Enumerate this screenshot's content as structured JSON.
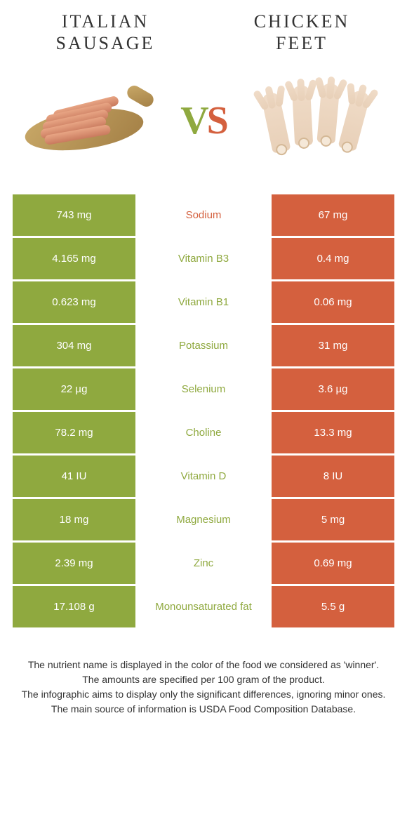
{
  "header": {
    "left_title": "ITALIAN\nSAUSAGE",
    "right_title": "CHICKEN\nFEET",
    "vs_v": "V",
    "vs_s": "S"
  },
  "colors": {
    "left": "#8fa93f",
    "right": "#d4603e",
    "background": "#ffffff"
  },
  "rows": [
    {
      "left": "743 mg",
      "label": "Sodium",
      "right": "67 mg",
      "winner": "orange"
    },
    {
      "left": "4.165 mg",
      "label": "Vitamin B3",
      "right": "0.4 mg",
      "winner": "green"
    },
    {
      "left": "0.623 mg",
      "label": "Vitamin B1",
      "right": "0.06 mg",
      "winner": "green"
    },
    {
      "left": "304 mg",
      "label": "Potassium",
      "right": "31 mg",
      "winner": "green"
    },
    {
      "left": "22 µg",
      "label": "Selenium",
      "right": "3.6 µg",
      "winner": "green"
    },
    {
      "left": "78.2 mg",
      "label": "Choline",
      "right": "13.3 mg",
      "winner": "green"
    },
    {
      "left": "41 IU",
      "label": "Vitamin D",
      "right": "8 IU",
      "winner": "green"
    },
    {
      "left": "18 mg",
      "label": "Magnesium",
      "right": "5 mg",
      "winner": "green"
    },
    {
      "left": "2.39 mg",
      "label": "Zinc",
      "right": "0.69 mg",
      "winner": "green"
    },
    {
      "left": "17.108 g",
      "label": "Monounsaturated fat",
      "right": "5.5 g",
      "winner": "green"
    }
  ],
  "footer": {
    "line1": "The nutrient name is displayed in the color of the food we considered as 'winner'.",
    "line2": "The amounts are specified per 100 gram of the product.",
    "line3": "The infographic aims to display only the significant differences, ignoring minor ones.",
    "line4": "The main source of information is USDA Food Composition Database."
  }
}
